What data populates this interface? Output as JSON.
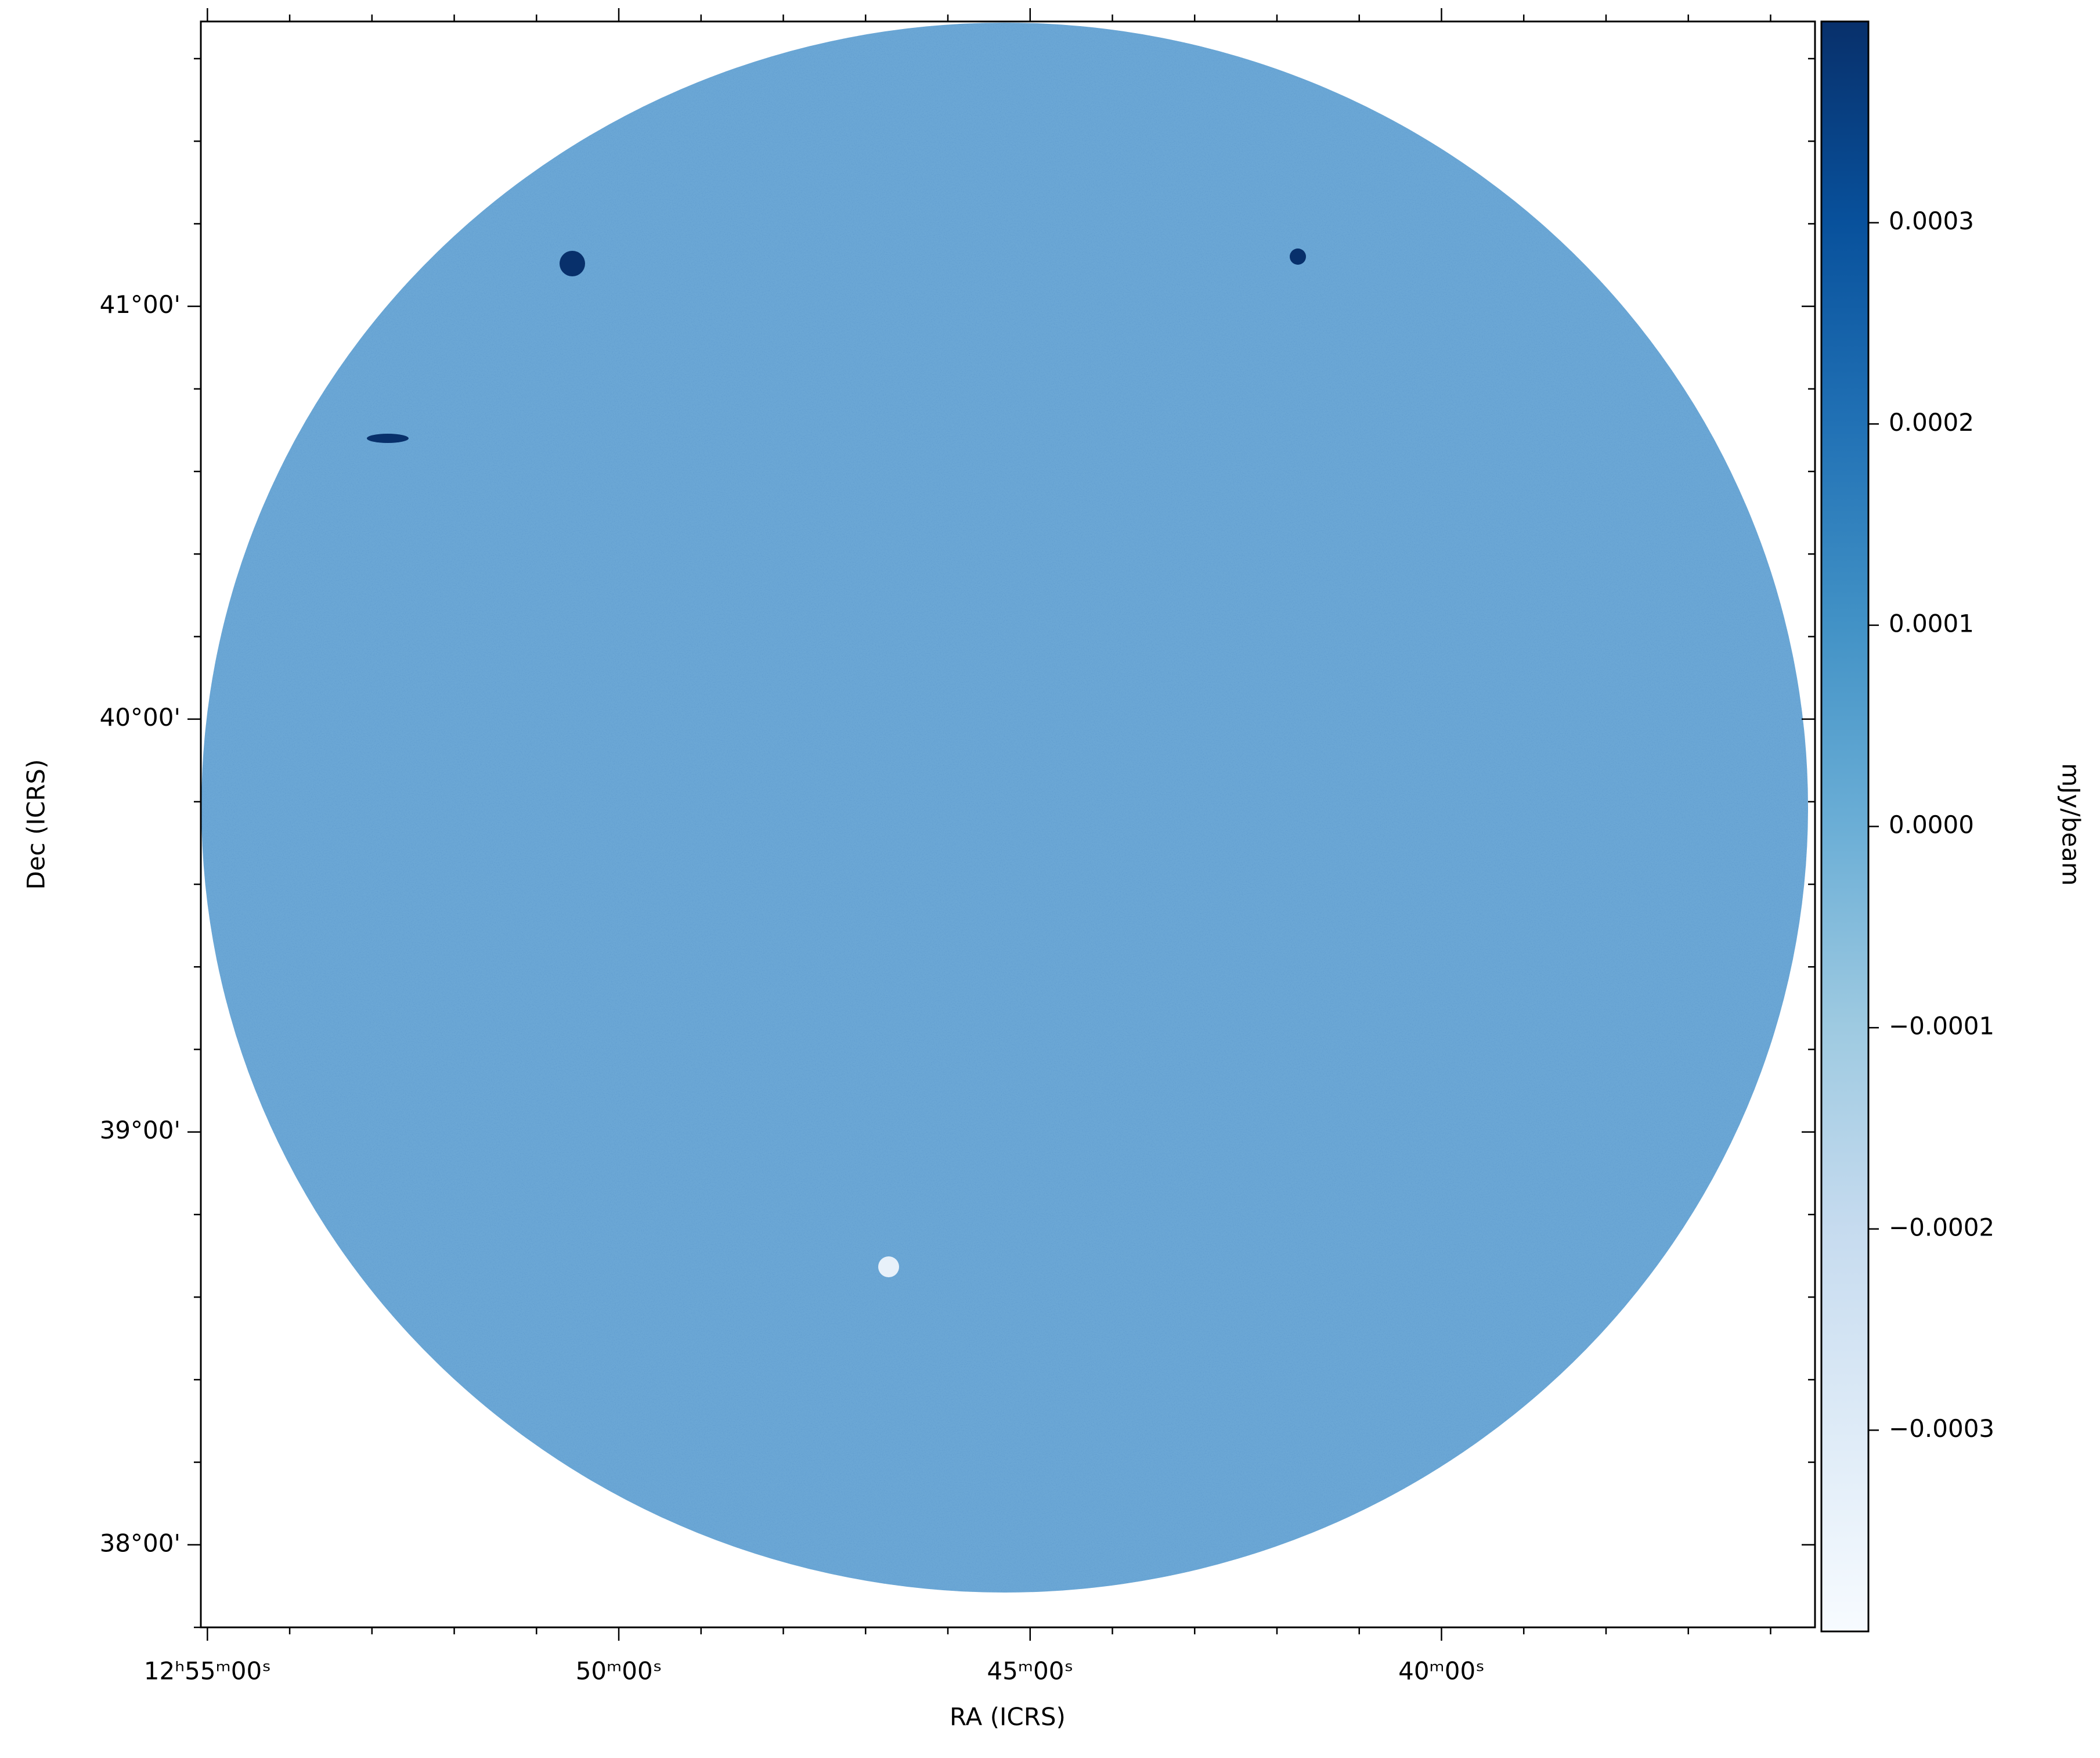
{
  "chart_data": {
    "type": "image",
    "x_label": "RA (ICRS)",
    "y_label": "Dec (ICRS)",
    "colorbar_label": "mJy/beam",
    "colormap": "Blues",
    "xlim": [
      55.08,
      35.46
    ],
    "xticks": [
      {
        "value": 55,
        "label": "12ʰ55ᵐ00ˢ"
      },
      {
        "value": 50,
        "label": "50ᵐ00ˢ"
      },
      {
        "value": 45,
        "label": "45ᵐ00ˢ"
      },
      {
        "value": 40,
        "label": "40ᵐ00ˢ"
      }
    ],
    "xminorticks": [
      54,
      53,
      52,
      51,
      49,
      48,
      47,
      46,
      44,
      43,
      42,
      41,
      39,
      38,
      37,
      36
    ],
    "ylim": [
      37.8,
      41.69
    ],
    "yticks": [
      {
        "value": 38,
        "label": "38°00'"
      },
      {
        "value": 39,
        "label": "39°00'"
      },
      {
        "value": 40,
        "label": "40°00'"
      },
      {
        "value": 41,
        "label": "41°00'"
      }
    ],
    "yminorticks": [
      37.8,
      38.2,
      38.4,
      38.6,
      38.8,
      39.2,
      39.4,
      39.6,
      39.8,
      40.2,
      40.4,
      40.6,
      40.8,
      41.2,
      41.4,
      41.6
    ],
    "clim": [
      -0.0004,
      0.0004
    ],
    "cticks": [
      {
        "value": -0.0003,
        "label": "−0.0003"
      },
      {
        "value": -0.0002,
        "label": "−0.0002"
      },
      {
        "value": -0.0001,
        "label": "−0.0001"
      },
      {
        "value": 0,
        "label": "0.0000"
      },
      0.0001,
      0.0002,
      0.0003
    ]
  }
}
